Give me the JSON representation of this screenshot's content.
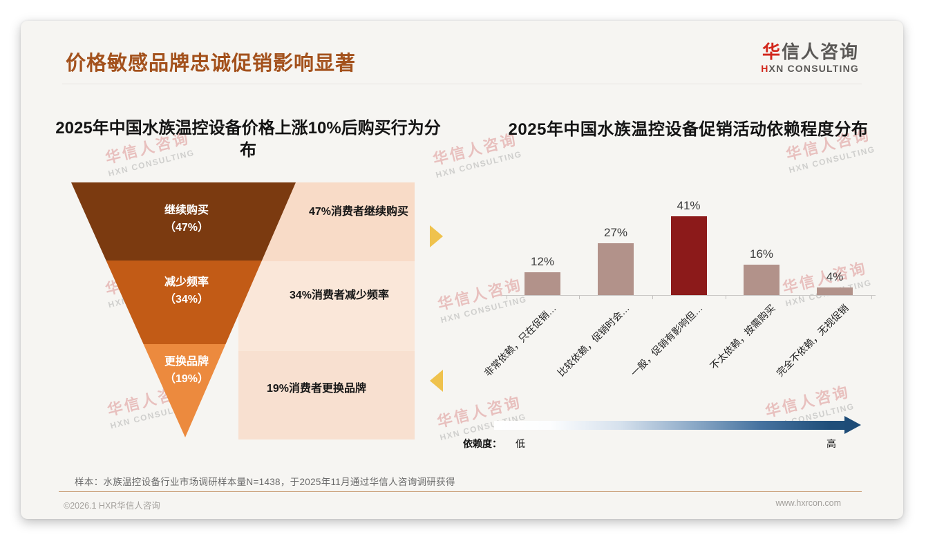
{
  "slide": {
    "title": "价格敏感品牌忠诚促销影响显著",
    "logo": {
      "zh_first": "华",
      "zh_rest": "信人咨询",
      "en_first": "H",
      "en_rest": "XN CONSULTING"
    },
    "watermark": {
      "zh": "华信人咨询",
      "en": "HXN CONSULTING"
    },
    "footnote": "样本：水族温控设备行业市场调研样本量N=1438，于2025年11月通过华信人咨询调研获得",
    "footer": {
      "copyright": "©2026.1 HXR华信人咨询",
      "website": "www.hxrcon.com"
    }
  },
  "chart_data": [
    {
      "type": "funnel",
      "title": "2025年中国水族温控设备价格上涨10%后购买行为分布",
      "title_wrapped": "2025年中国水族温控设备价格上涨10%后购买行为分\n布",
      "categories": [
        "继续购买",
        "减少频率",
        "更换品牌"
      ],
      "values": [
        47,
        34,
        19
      ],
      "unit": "%",
      "segments": [
        {
          "label": "继续购买",
          "value_label": "（47%）",
          "annotation": "47%消费者继续购买",
          "color": "#7B3A10"
        },
        {
          "label": "减少频率",
          "value_label": "（34%）",
          "annotation": "34%消费者减少频率",
          "color": "#C25B16"
        },
        {
          "label": "更换品牌",
          "value_label": "（19%）",
          "annotation": "19%消费者更换品牌",
          "color": "#EC8A3E"
        }
      ],
      "arrow_color": "#EFC24D"
    },
    {
      "type": "bar",
      "title": "2025年中国水族温控设备促销活动依赖程度分布",
      "categories": [
        "非常依赖，只在促销…",
        "比较依赖，促销时会…",
        "一般，促销有影响但…",
        "不太依赖，按需购买",
        "完全不依赖，无视促销"
      ],
      "values": [
        12,
        27,
        41,
        16,
        4
      ],
      "value_labels": [
        "12%",
        "27%",
        "41%",
        "16%",
        "4%"
      ],
      "ylim": [
        0,
        45
      ],
      "grid": false,
      "bar_color": "#B2928A",
      "highlight_index": 2,
      "highlight_color": "#8C1A1A",
      "legend": {
        "label": "依赖度：",
        "low": "低",
        "high": "高",
        "gradient_from": "#FFFFFF",
        "gradient_to": "#1F4E79"
      }
    }
  ]
}
